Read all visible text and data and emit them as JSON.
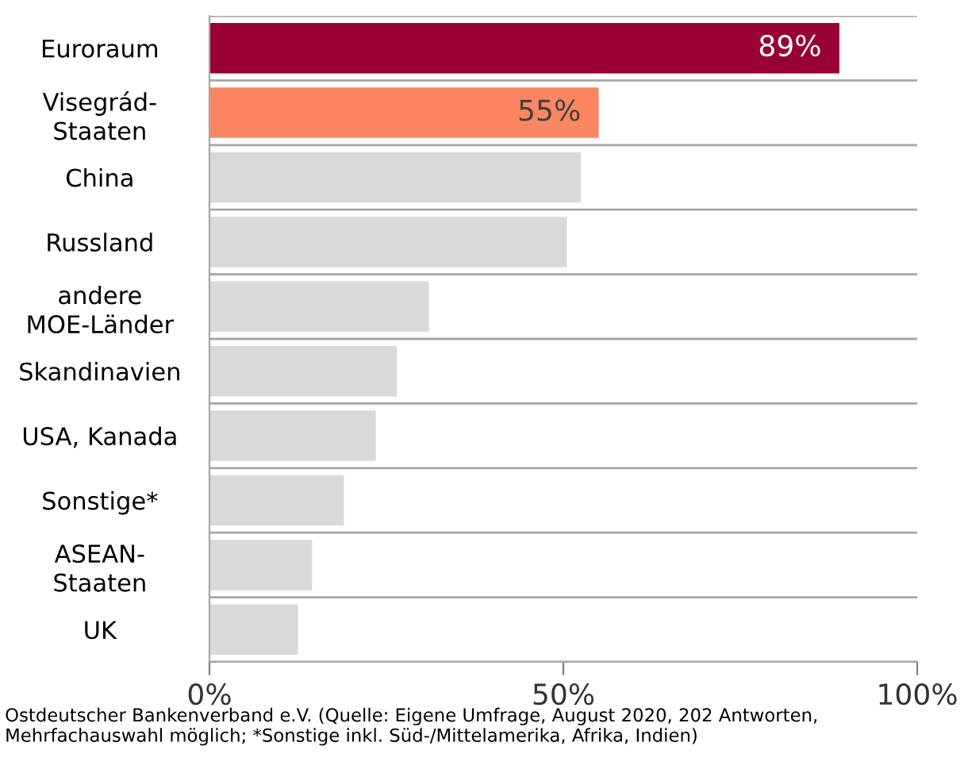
{
  "chart_data": {
    "type": "bar",
    "orientation": "horizontal",
    "categories": [
      "Euroraum",
      "Visegrád-\nStaaten",
      "China",
      "Russland",
      "andere\nMOE-Länder",
      "Skandinavien",
      "USA, Kanada",
      "Sonstige*",
      "ASEAN-\nStaaten",
      "UK"
    ],
    "values": [
      89,
      55,
      52.5,
      50.5,
      31,
      26.5,
      23.5,
      19,
      14.5,
      12.5
    ],
    "value_labels": [
      "89%",
      "55%",
      null,
      null,
      null,
      null,
      null,
      null,
      null,
      null
    ],
    "colors": [
      "#990033",
      "#fc8662",
      "#d9d9d9",
      "#d9d9d9",
      "#d9d9d9",
      "#d9d9d9",
      "#d9d9d9",
      "#d9d9d9",
      "#d9d9d9",
      "#d9d9d9"
    ],
    "xlim": [
      0,
      100
    ],
    "xticks": [
      {
        "value": 0,
        "label": "0%"
      },
      {
        "value": 50,
        "label": "50%"
      },
      {
        "value": 100,
        "label": "100%"
      }
    ],
    "grid": "y",
    "annotations": [
      "Ostdeutscher Bankenverband e.V. (Quelle: Eigene Umfrage, August 2020, 202 Antworten, Mehrfachauswahl möglich; *Sonstige inkl. Süd-/Mittelamerika, Afrika, Indien)"
    ]
  }
}
